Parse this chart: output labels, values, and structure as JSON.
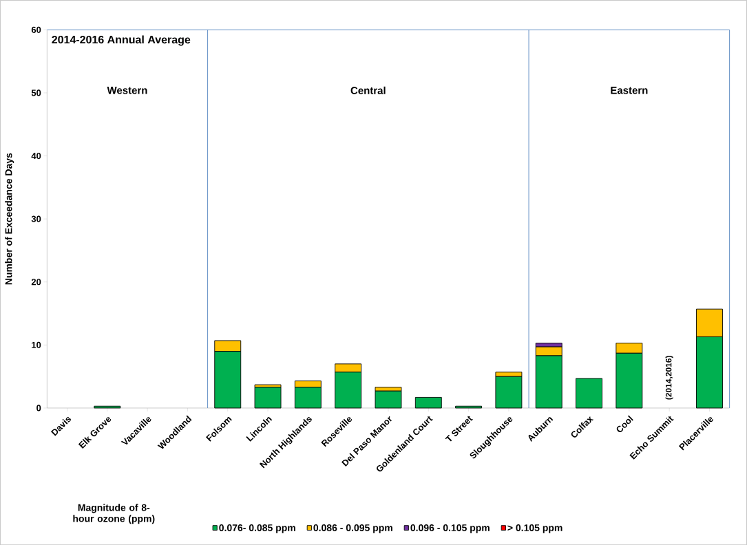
{
  "chart_data": {
    "type": "bar",
    "stacked": true,
    "title": "2014-2016 Annual Average",
    "ylabel": "Number of Exceedance Days",
    "legend_title": "Magnitude of 8-hour ozone (ppm)",
    "categories": [
      "Davis",
      "Elk Grove",
      "Vacaville",
      "Woodland",
      "Folsom",
      "Lincoln",
      "North Highlands",
      "Roseville",
      "Del Paso Manor",
      "Goldenland Court",
      "T Street",
      "Sloughhouse",
      "Auburn",
      "Colfax",
      "Cool",
      "Echo Summit",
      "Placerville"
    ],
    "series": [
      {
        "name": "0.076- 0.085 ppm",
        "color": "#00b050",
        "values": [
          0,
          0.3,
          0,
          0,
          9.0,
          3.3,
          3.3,
          5.7,
          2.7,
          1.7,
          0.3,
          5.0,
          8.3,
          4.7,
          8.7,
          null,
          11.3
        ]
      },
      {
        "name": "0.086 - 0.095 ppm",
        "color": "#ffc000",
        "values": [
          0,
          0,
          0,
          0,
          1.7,
          0.4,
          1.0,
          1.3,
          0.6,
          0,
          0,
          0.7,
          1.4,
          0,
          1.6,
          null,
          4.4
        ]
      },
      {
        "name": "0.096 - 0.105 ppm",
        "color": "#7030a0",
        "values": [
          0,
          0,
          0,
          0,
          0,
          0,
          0,
          0,
          0,
          0,
          0,
          0,
          0.6,
          0,
          0,
          null,
          0
        ]
      },
      {
        "name": "> 0.105 ppm",
        "color": "#ff0000",
        "values": [
          0,
          0,
          0,
          0,
          0,
          0,
          0,
          0,
          0,
          0,
          0,
          0,
          0,
          0,
          0,
          null,
          0
        ]
      }
    ],
    "ylim": [
      0,
      60
    ],
    "yticks": [
      0,
      10,
      20,
      30,
      40,
      50,
      60
    ],
    "grid": false,
    "legend": "bottom",
    "annotations": [
      "Western",
      "Central",
      "Eastern",
      "(2014,2016)"
    ]
  }
}
